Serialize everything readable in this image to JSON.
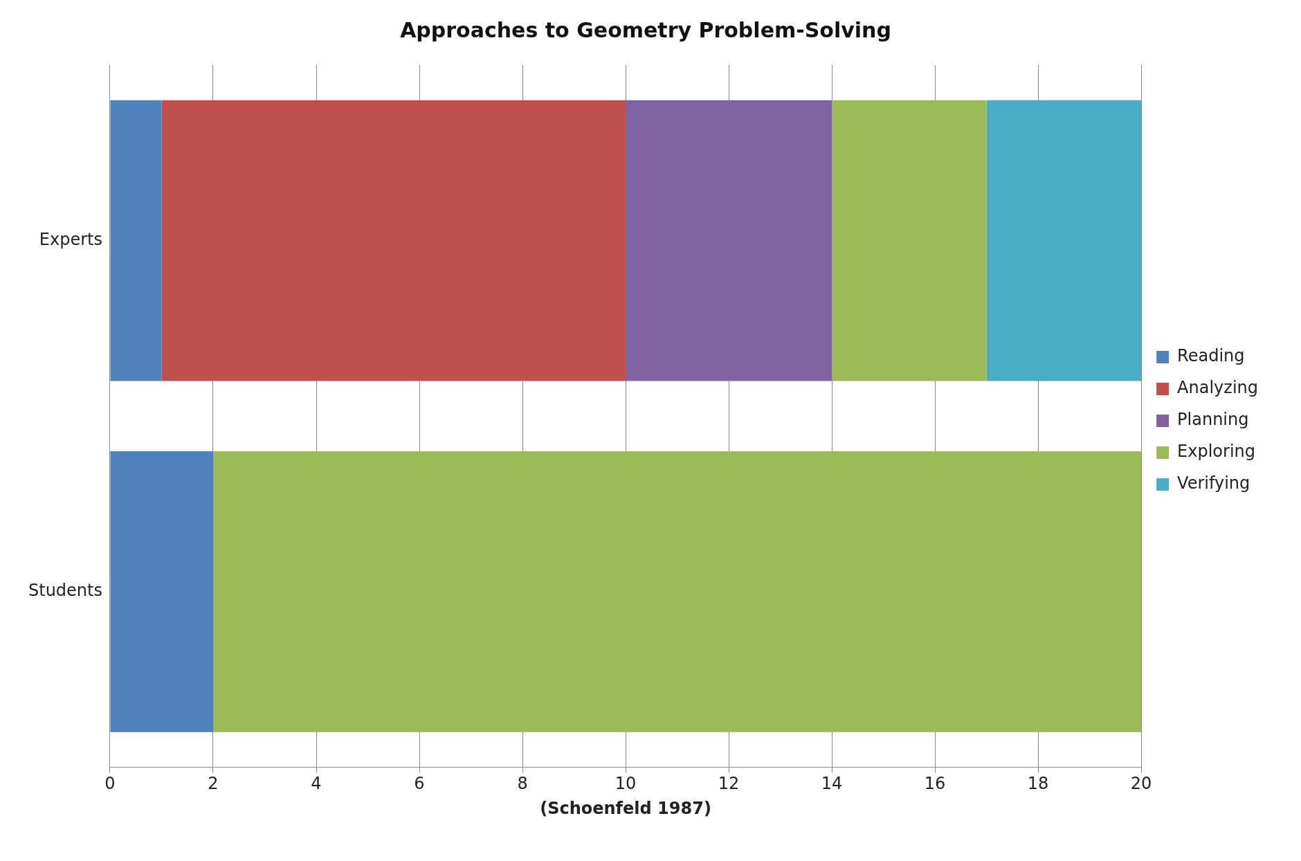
{
  "chart_data": {
    "type": "bar",
    "title": "Approaches to Geometry Problem-Solving",
    "xlabel": "(Schoenfeld 1987)",
    "orientation": "horizontal",
    "stacked": true,
    "categories": [
      "Experts",
      "Students"
    ],
    "series": [
      {
        "name": "Reading",
        "color": "#4f81bd",
        "values": [
          1,
          2
        ]
      },
      {
        "name": "Analyzing",
        "color": "#c0504d",
        "values": [
          9,
          0
        ]
      },
      {
        "name": "Planning",
        "color": "#8064a2",
        "values": [
          4,
          0
        ]
      },
      {
        "name": "Exploring",
        "color": "#9bbb59",
        "values": [
          3,
          18
        ]
      },
      {
        "name": "Verifying",
        "color": "#4bacc6",
        "values": [
          3,
          0
        ]
      }
    ],
    "xlim": [
      0,
      20
    ],
    "xticks": [
      0,
      2,
      4,
      6,
      8,
      10,
      12,
      14,
      16,
      18,
      20
    ],
    "grid": "x",
    "legend": "right"
  }
}
